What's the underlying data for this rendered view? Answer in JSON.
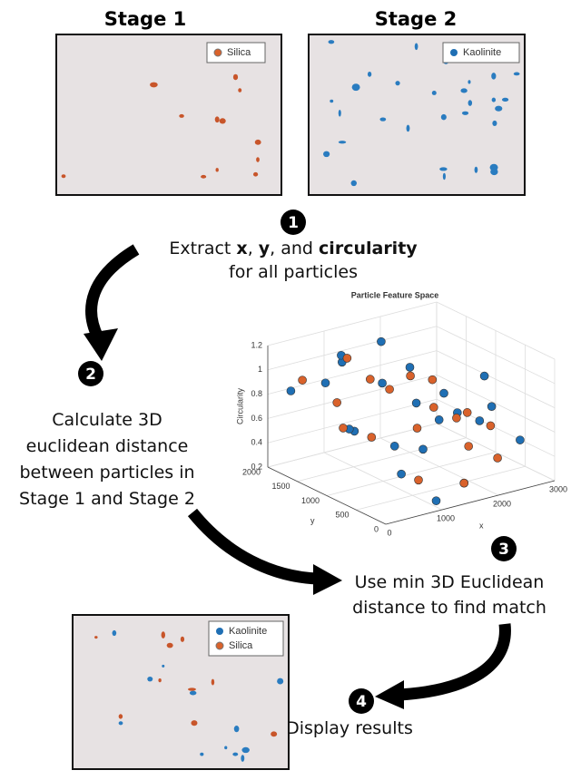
{
  "panels": [
    {
      "title": "Stage 1",
      "legend": [
        "Silica"
      ]
    },
    {
      "title": "Stage 2",
      "legend": [
        "Kaolinite"
      ]
    }
  ],
  "steps": [
    {
      "number": 1,
      "lines": [
        [
          {
            "text": "Extract "
          },
          {
            "text": "x",
            "bold": true
          },
          {
            "text": ", "
          },
          {
            "text": "y",
            "bold": true
          },
          {
            "text": ", and "
          },
          {
            "text": "circularity",
            "bold": true
          }
        ],
        [
          {
            "text": "for all particles"
          }
        ]
      ]
    },
    {
      "number": 2,
      "lines": [
        [
          {
            "text": "Calculate 3D"
          }
        ],
        [
          {
            "text": "euclidean distance"
          }
        ],
        [
          {
            "text": "between particles in"
          }
        ],
        [
          {
            "text": "Stage 1 and Stage 2"
          }
        ]
      ]
    },
    {
      "number": 3,
      "lines": [
        [
          {
            "text": "Use min 3D Euclidean"
          }
        ],
        [
          {
            "text": "distance to find match"
          }
        ]
      ]
    },
    {
      "number": 4,
      "lines": [
        [
          {
            "text": "Display results"
          }
        ]
      ]
    }
  ],
  "result_panel": {
    "legend": [
      "Kaolinite",
      "Silica"
    ]
  },
  "chart_data": {
    "type": "scatter3d",
    "title": "Particle Feature Space",
    "xlabel": "x",
    "ylabel": "y",
    "zlabel": "Circularity",
    "xlim": [
      0,
      3000
    ],
    "ylim": [
      0,
      2000
    ],
    "zlim": [
      0.2,
      1.2
    ],
    "xticks": [
      0,
      1000,
      2000,
      3000
    ],
    "yticks": [
      0,
      500,
      1000,
      1500,
      2000
    ],
    "zticks": [
      0.2,
      0.4,
      0.6,
      0.8,
      1,
      1.2
    ],
    "grid": true,
    "series": [
      {
        "color": "#1f6fb4",
        "x": [
          200,
          500,
          700,
          900,
          1100,
          1300,
          1500,
          1700,
          1900,
          2100,
          2300,
          2500,
          2700,
          400,
          800,
          1200,
          1600,
          2000,
          2400,
          2800,
          1000,
          1800
        ],
        "y": [
          1800,
          1500,
          1200,
          1600,
          900,
          1300,
          800,
          1700,
          600,
          1100,
          400,
          1400,
          300,
          1000,
          500,
          1900,
          200,
          1500,
          700,
          1000,
          100,
          1200
        ],
        "z": [
          0.85,
          0.95,
          0.6,
          1.05,
          0.5,
          0.9,
          0.45,
          1.1,
          0.75,
          0.55,
          0.8,
          0.65,
          0.5,
          0.7,
          0.4,
          1.0,
          0.3,
          0.9,
          0.6,
          0.85,
          0.25,
          0.7
        ]
      },
      {
        "color": "#d9622b",
        "x": [
          300,
          600,
          900,
          1200,
          1500,
          1800,
          2100,
          2400,
          2700,
          500,
          1000,
          1400,
          1900,
          2300,
          2600,
          800,
          1600,
          2200
        ],
        "y": [
          1700,
          1400,
          1100,
          1800,
          900,
          1300,
          600,
          1500,
          800,
          1200,
          400,
          1600,
          1000,
          300,
          1100,
          700,
          200,
          900
        ],
        "z": [
          0.95,
          0.8,
          0.55,
          1.0,
          0.6,
          0.9,
          0.45,
          0.75,
          0.5,
          0.65,
          0.35,
          0.85,
          0.7,
          0.4,
          0.55,
          1.05,
          0.3,
          0.6
        ]
      }
    ]
  }
}
